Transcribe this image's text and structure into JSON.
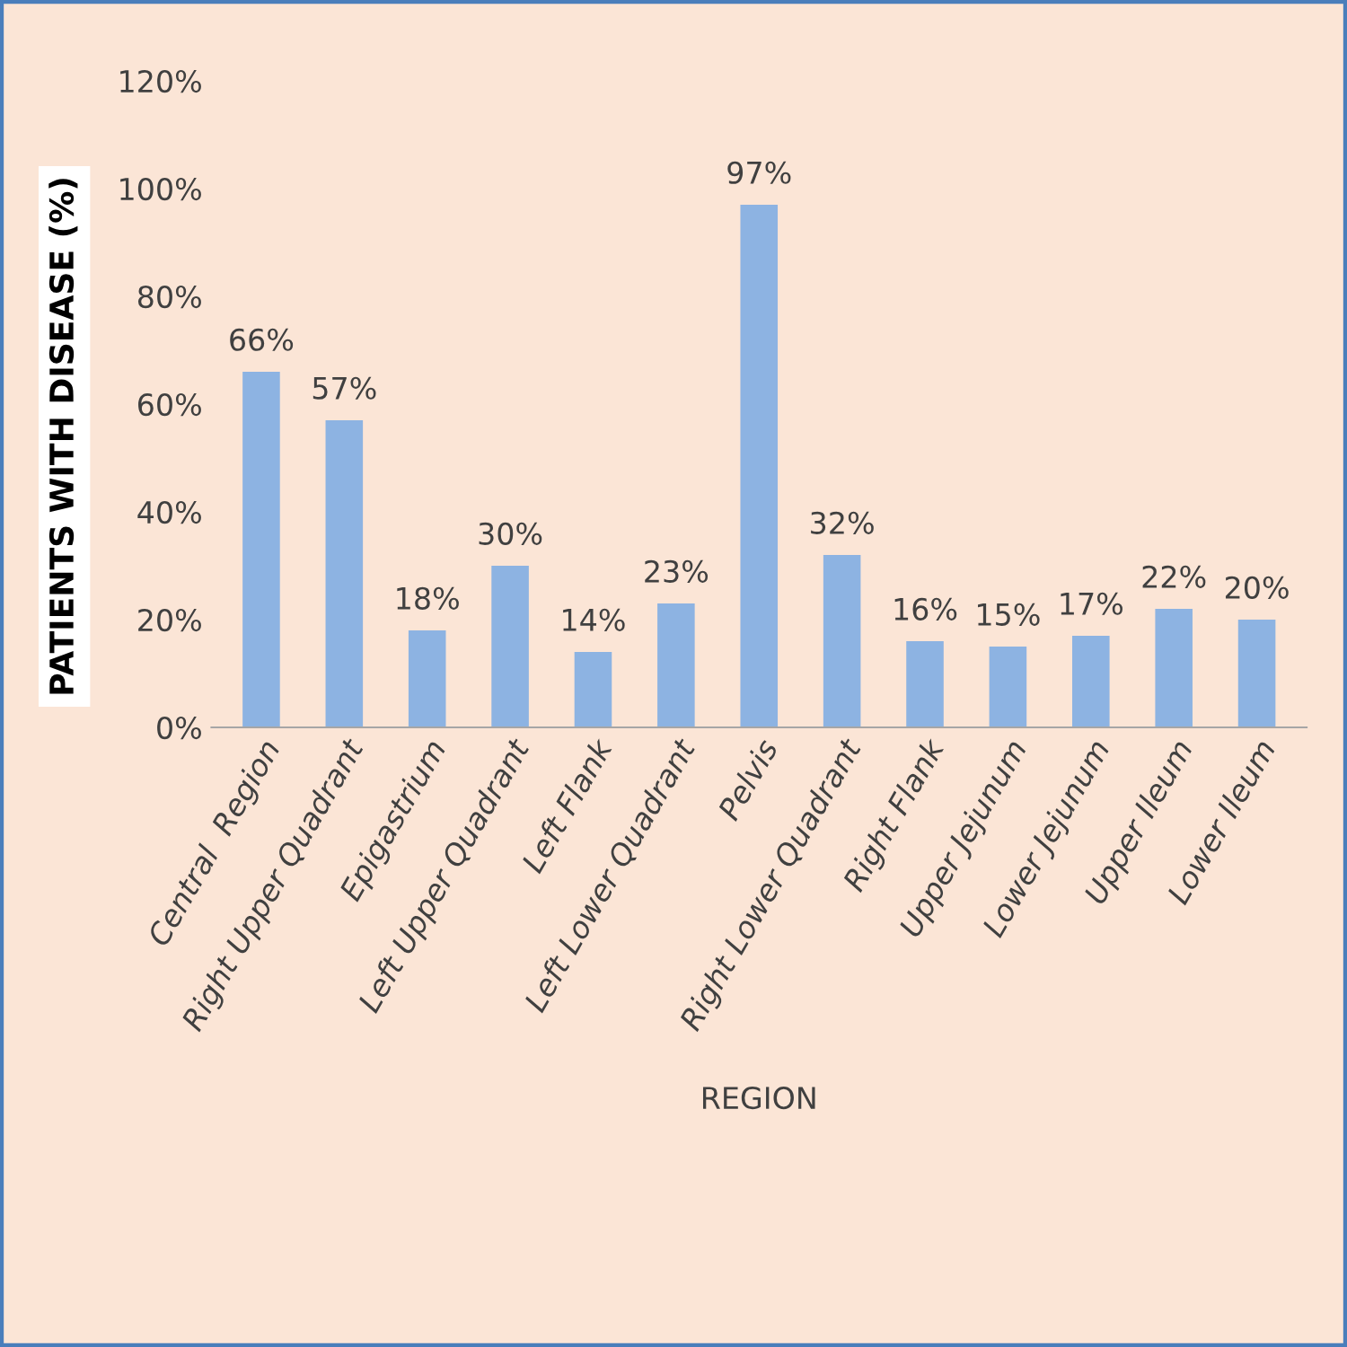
{
  "chart_data": {
    "type": "bar",
    "xlabel": "REGION",
    "ylabel": "PATIENTS WITH DISEASE (%)",
    "categories": [
      "Central  Region",
      "Right Upper Quadrant",
      "Epigastrium",
      "Left Upper Quadrant",
      "Left Flank",
      "Left Lower Quadrant",
      "Pelvis",
      "Right Lower Quadrant",
      "Right Flank",
      "Upper Jejunum",
      "Lower Jejunum",
      "Upper Ileum",
      "Lower Ileum"
    ],
    "values": [
      66,
      57,
      18,
      30,
      14,
      23,
      97,
      32,
      16,
      15,
      17,
      22,
      20
    ],
    "value_labels": [
      "66%",
      "57%",
      "18%",
      "30%",
      "14%",
      "23%",
      "97%",
      "32%",
      "16%",
      "15%",
      "17%",
      "22%",
      "20%"
    ],
    "color": "#8db3e2",
    "ylim": [
      0,
      120
    ],
    "yticks": [
      {
        "value": 0,
        "label": "0%"
      },
      {
        "value": 20,
        "label": "20%"
      },
      {
        "value": 40,
        "label": "40%"
      },
      {
        "value": 60,
        "label": "60%"
      },
      {
        "value": 80,
        "label": "80%"
      },
      {
        "value": 100,
        "label": "100%"
      },
      {
        "value": 120,
        "label": "120%"
      }
    ],
    "grid": false,
    "legend": false
  }
}
